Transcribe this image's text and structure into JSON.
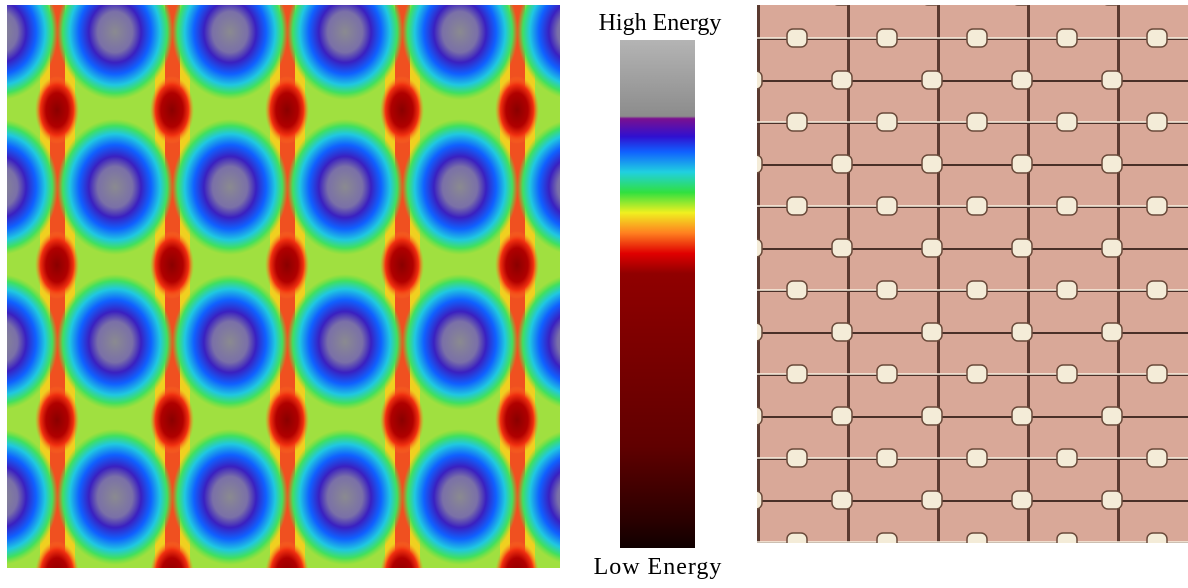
{
  "labels": {
    "high": "High Energy",
    "low": "Low Energy"
  }
}
